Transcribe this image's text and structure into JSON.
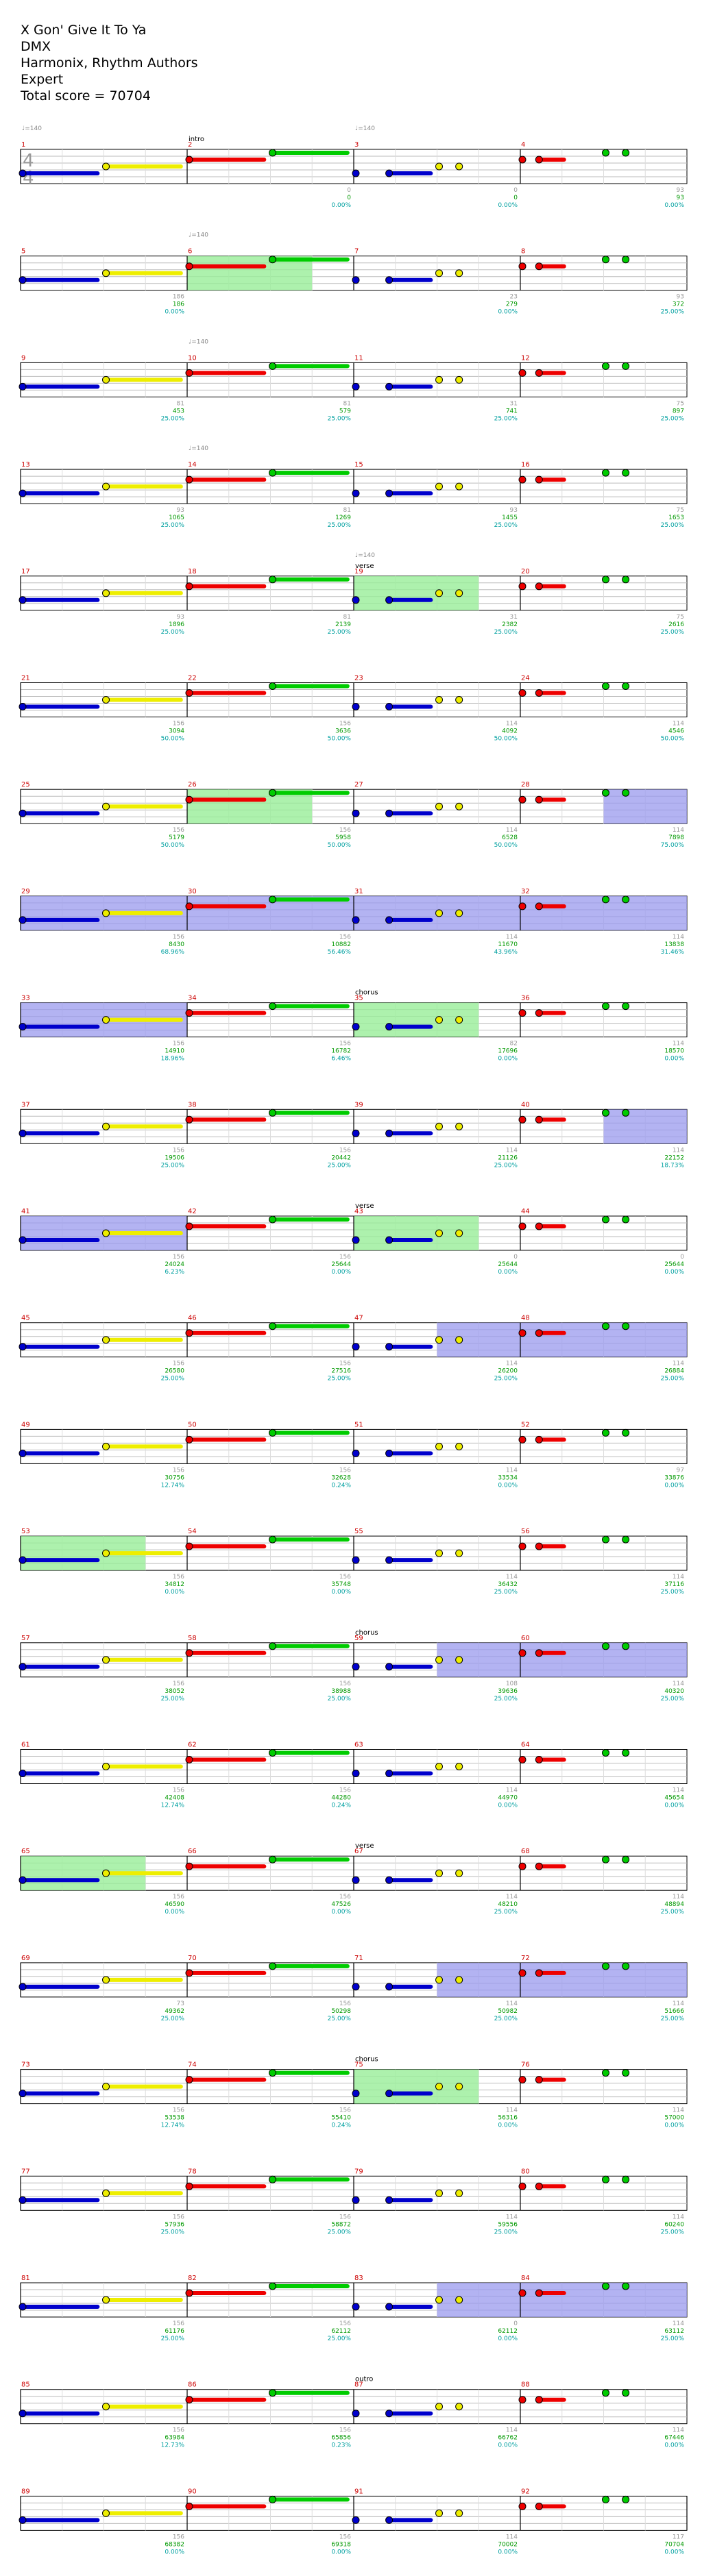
{
  "header": {
    "song": "X Gon' Give It To Ya",
    "artist": "DMX",
    "charter": "Harmonix, Rhythm Authors",
    "difficulty": "Expert",
    "total_score": "Total score = 70704"
  },
  "time_signature": "4/4",
  "colors": {
    "green": "#00cc00",
    "red": "#ee0000",
    "yellow": "#eeee00",
    "blue": "#0000cc",
    "orange": "#ff8800",
    "measure_number": "#cc0000",
    "score": "#009900",
    "percent": "#00a0a0",
    "combo": "#999999",
    "sp_phrase": "#99ee99",
    "sp_active": "#9999ee"
  },
  "measures": [
    {
      "n": 1,
      "bpm": "♩=140",
      "combo": "",
      "score": "",
      "pct": ""
    },
    {
      "n": 2,
      "section": "intro",
      "combo": "0",
      "score": "0",
      "pct": "0.00%"
    },
    {
      "n": 3,
      "bpm": "♩=140",
      "combo": "0",
      "score": "0",
      "pct": "0.00%"
    },
    {
      "n": 4,
      "combo": "93",
      "score": "93",
      "pct": "0.00%"
    },
    {
      "n": 5,
      "combo": "186",
      "score": "186",
      "pct": "0.00%"
    },
    {
      "n": 6,
      "bpm": "♩=140",
      "combo": "",
      "score": "",
      "pct": ""
    },
    {
      "n": 7,
      "combo": "23",
      "score": "279",
      "pct": "0.00%"
    },
    {
      "n": 8,
      "combo": "93",
      "score": "372",
      "pct": "25.00%"
    },
    {
      "n": 9,
      "combo": "81",
      "score": "453",
      "pct": "25.00%"
    },
    {
      "n": 10,
      "bpm": "♩=140",
      "combo": "81",
      "score": "579",
      "pct": "25.00%"
    },
    {
      "n": 11,
      "combo": "31",
      "score": "741",
      "pct": "25.00%"
    },
    {
      "n": 12,
      "combo": "75",
      "score": "897",
      "pct": "25.00%"
    },
    {
      "n": 13,
      "combo": "93",
      "score": "1065",
      "pct": "25.00%"
    },
    {
      "n": 14,
      "bpm": "♩=140",
      "combo": "81",
      "score": "1269",
      "pct": "25.00%"
    },
    {
      "n": 15,
      "combo": "93",
      "score": "1455",
      "pct": "25.00%"
    },
    {
      "n": 16,
      "combo": "75",
      "score": "1653",
      "pct": "25.00%"
    },
    {
      "n": 17,
      "combo": "93",
      "score": "1896",
      "pct": "25.00%"
    },
    {
      "n": 18,
      "combo": "81",
      "score": "2139",
      "pct": "25.00%"
    },
    {
      "n": 19,
      "bpm": "♩=140",
      "section": "verse",
      "combo": "31",
      "score": "2382",
      "pct": "25.00%"
    },
    {
      "n": 20,
      "combo": "75",
      "score": "2616",
      "pct": "25.00%"
    },
    {
      "n": 21,
      "combo": "156",
      "score": "3094",
      "pct": "50.00%"
    },
    {
      "n": 22,
      "combo": "156",
      "score": "3636",
      "pct": "50.00%"
    },
    {
      "n": 23,
      "combo": "114",
      "score": "4092",
      "pct": "50.00%"
    },
    {
      "n": 24,
      "combo": "114",
      "score": "4546",
      "pct": "50.00%"
    },
    {
      "n": 25,
      "combo": "156",
      "score": "5179",
      "pct": "50.00%"
    },
    {
      "n": 26,
      "combo": "156",
      "score": "5958",
      "pct": "50.00%"
    },
    {
      "n": 27,
      "combo": "114",
      "score": "6528",
      "pct": "50.00%"
    },
    {
      "n": 28,
      "combo": "114",
      "score": "7898",
      "pct": "75.00%"
    },
    {
      "n": 29,
      "combo": "156",
      "score": "8430",
      "pct": "68.96%"
    },
    {
      "n": 30,
      "combo": "156",
      "score": "10882",
      "pct": "56.46%"
    },
    {
      "n": 31,
      "combo": "114",
      "score": "11670",
      "pct": "43.96%"
    },
    {
      "n": 32,
      "combo": "114",
      "score": "13838",
      "pct": "31.46%"
    },
    {
      "n": 33,
      "combo": "156",
      "score": "14910",
      "pct": "18.96%"
    },
    {
      "n": 34,
      "combo": "156",
      "score": "16782",
      "pct": "6.46%"
    },
    {
      "n": 35,
      "section": "chorus",
      "combo": "82",
      "score": "17696",
      "pct": "0.00%"
    },
    {
      "n": 36,
      "combo": "114",
      "score": "18570",
      "pct": "0.00%"
    },
    {
      "n": 37,
      "combo": "156",
      "score": "19506",
      "pct": "25.00%"
    },
    {
      "n": 38,
      "combo": "156",
      "score": "20442",
      "pct": "25.00%"
    },
    {
      "n": 39,
      "combo": "114",
      "score": "21126",
      "pct": "25.00%"
    },
    {
      "n": 40,
      "combo": "114",
      "score": "22152",
      "pct": "18.73%"
    },
    {
      "n": 41,
      "combo": "156",
      "score": "24024",
      "pct": "6.23%"
    },
    {
      "n": 42,
      "combo": "156",
      "score": "25644",
      "pct": "0.00%"
    },
    {
      "n": 43,
      "section": "verse",
      "combo": "0",
      "score": "25644",
      "pct": "0.00%"
    },
    {
      "n": 44,
      "combo": "0",
      "score": "25644",
      "pct": "0.00%"
    },
    {
      "n": 45,
      "combo": "156",
      "score": "26580",
      "pct": "25.00%"
    },
    {
      "n": 46,
      "combo": "156",
      "score": "27516",
      "pct": "25.00%"
    },
    {
      "n": 47,
      "combo": "114",
      "score": "26200",
      "pct": "25.00%"
    },
    {
      "n": 48,
      "combo": "114",
      "score": "26884",
      "pct": "25.00%"
    },
    {
      "n": 49,
      "combo": "156",
      "score": "30756",
      "pct": "12.74%"
    },
    {
      "n": 50,
      "combo": "156",
      "score": "32628",
      "pct": "0.24%"
    },
    {
      "n": 51,
      "combo": "114",
      "score": "33534",
      "pct": "0.00%"
    },
    {
      "n": 52,
      "combo": "97",
      "score": "33876",
      "pct": "0.00%"
    },
    {
      "n": 53,
      "combo": "156",
      "score": "34812",
      "pct": "0.00%"
    },
    {
      "n": 54,
      "combo": "156",
      "score": "35748",
      "pct": "0.00%"
    },
    {
      "n": 55,
      "combo": "114",
      "score": "36432",
      "pct": "25.00%"
    },
    {
      "n": 56,
      "combo": "114",
      "score": "37116",
      "pct": "25.00%"
    },
    {
      "n": 57,
      "combo": "156",
      "score": "38052",
      "pct": "25.00%"
    },
    {
      "n": 58,
      "combo": "156",
      "score": "38988",
      "pct": "25.00%"
    },
    {
      "n": 59,
      "section": "chorus",
      "combo": "108",
      "score": "39636",
      "pct": "25.00%"
    },
    {
      "n": 60,
      "combo": "114",
      "score": "40320",
      "pct": "25.00%"
    },
    {
      "n": 61,
      "combo": "156",
      "score": "42408",
      "pct": "12.74%"
    },
    {
      "n": 62,
      "combo": "156",
      "score": "44280",
      "pct": "0.24%"
    },
    {
      "n": 63,
      "combo": "114",
      "score": "44970",
      "pct": "0.00%"
    },
    {
      "n": 64,
      "combo": "114",
      "score": "45654",
      "pct": "0.00%"
    },
    {
      "n": 65,
      "combo": "156",
      "score": "46590",
      "pct": "0.00%"
    },
    {
      "n": 66,
      "combo": "156",
      "score": "47526",
      "pct": "0.00%"
    },
    {
      "n": 67,
      "section": "verse",
      "combo": "114",
      "score": "48210",
      "pct": "25.00%"
    },
    {
      "n": 68,
      "combo": "114",
      "score": "48894",
      "pct": "25.00%"
    },
    {
      "n": 69,
      "combo": "73",
      "score": "49362",
      "pct": "25.00%"
    },
    {
      "n": 70,
      "combo": "156",
      "score": "50298",
      "pct": "25.00%"
    },
    {
      "n": 71,
      "combo": "114",
      "score": "50982",
      "pct": "25.00%"
    },
    {
      "n": 72,
      "combo": "114",
      "score": "51666",
      "pct": "25.00%"
    },
    {
      "n": 73,
      "combo": "156",
      "score": "53538",
      "pct": "12.74%"
    },
    {
      "n": 74,
      "combo": "156",
      "score": "55410",
      "pct": "0.24%"
    },
    {
      "n": 75,
      "section": "chorus",
      "combo": "114",
      "score": "56316",
      "pct": "0.00%"
    },
    {
      "n": 76,
      "combo": "114",
      "score": "57000",
      "pct": "0.00%"
    },
    {
      "n": 77,
      "combo": "156",
      "score": "57936",
      "pct": "25.00%"
    },
    {
      "n": 78,
      "combo": "156",
      "score": "58872",
      "pct": "25.00%"
    },
    {
      "n": 79,
      "combo": "114",
      "score": "59556",
      "pct": "25.00%"
    },
    {
      "n": 80,
      "combo": "114",
      "score": "60240",
      "pct": "25.00%"
    },
    {
      "n": 81,
      "combo": "156",
      "score": "61176",
      "pct": "25.00%"
    },
    {
      "n": 82,
      "combo": "156",
      "score": "62112",
      "pct": "25.00%"
    },
    {
      "n": 83,
      "combo": "0",
      "score": "62112",
      "pct": "0.00%"
    },
    {
      "n": 84,
      "combo": "114",
      "score": "63112",
      "pct": "25.00%"
    },
    {
      "n": 85,
      "combo": "156",
      "score": "63984",
      "pct": "12.73%"
    },
    {
      "n": 86,
      "combo": "156",
      "score": "65856",
      "pct": "0.23%"
    },
    {
      "n": 87,
      "section": "outro",
      "combo": "114",
      "score": "66762",
      "pct": "0.00%"
    },
    {
      "n": 88,
      "combo": "114",
      "score": "67446",
      "pct": "0.00%"
    },
    {
      "n": 89,
      "combo": "156",
      "score": "68382",
      "pct": "0.00%"
    },
    {
      "n": 90,
      "combo": "156",
      "score": "69318",
      "pct": "0.00%"
    },
    {
      "n": 91,
      "combo": "114",
      "score": "70002",
      "pct": "0.00%"
    },
    {
      "n": 92,
      "combo": "117",
      "score": "70704",
      "pct": "0.00%"
    }
  ]
}
